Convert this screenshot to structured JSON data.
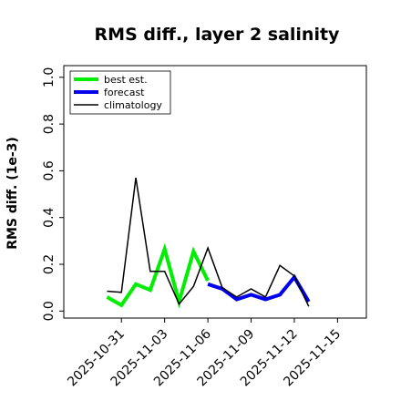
{
  "chart_data": {
    "type": "line",
    "title": "RMS diff., layer 2 salinity",
    "xlabel": "",
    "ylabel": "RMS diff. (1e-3)",
    "ylim": [
      -0.03,
      1.05
    ],
    "yticks": [
      0.0,
      0.2,
      0.4,
      0.6,
      0.8,
      1.0
    ],
    "ytick_labels": [
      "0.0",
      "0.2",
      "0.4",
      "0.6",
      "0.8",
      "1.0"
    ],
    "xlim": [
      "2025-10-27T00:00",
      "2025-11-17T00:00"
    ],
    "xticks": [
      "2025-10-31",
      "2025-11-03",
      "2025-11-06",
      "2025-11-09",
      "2025-11-12",
      "2025-11-15"
    ],
    "xtick_labels": [
      "2025-10-31",
      "2025-11-03",
      "2025-11-06",
      "2025-11-09",
      "2025-11-12",
      "2025-11-15"
    ],
    "highlight_xtick": "2025-11-06",
    "highlight_color": "#2e8b2e",
    "grid": false,
    "legend_position": "top-left",
    "series": [
      {
        "name": "best est.",
        "color": "#00ee00",
        "width": 4,
        "points": [
          [
            "2025-10-30T00:00",
            0.06
          ],
          [
            "2025-10-31T00:00",
            0.025
          ],
          [
            "2025-11-01T00:00",
            0.115
          ],
          [
            "2025-11-02T00:00",
            0.09
          ],
          [
            "2025-11-03T00:00",
            0.265
          ],
          [
            "2025-11-04T00:00",
            0.04
          ],
          [
            "2025-11-05T00:00",
            0.255
          ],
          [
            "2025-11-06T00:00",
            0.13
          ]
        ]
      },
      {
        "name": "forecast",
        "color": "#0000ee",
        "width": 4,
        "points": [
          [
            "2025-11-06T00:00",
            0.115
          ],
          [
            "2025-11-07T00:00",
            0.095
          ],
          [
            "2025-11-08T00:00",
            0.05
          ],
          [
            "2025-11-09T00:00",
            0.07
          ],
          [
            "2025-11-10T00:00",
            0.05
          ],
          [
            "2025-11-11T00:00",
            0.07
          ],
          [
            "2025-11-12T00:00",
            0.145
          ],
          [
            "2025-11-13T00:00",
            0.04
          ]
        ]
      },
      {
        "name": "climatology",
        "color": "#000000",
        "width": 1.5,
        "points": [
          [
            "2025-10-30T00:00",
            0.085
          ],
          [
            "2025-10-31T00:00",
            0.08
          ],
          [
            "2025-11-01T00:00",
            0.57
          ],
          [
            "2025-11-02T00:00",
            0.17
          ],
          [
            "2025-11-03T00:00",
            0.17
          ],
          [
            "2025-11-04T00:00",
            0.03
          ],
          [
            "2025-11-05T00:00",
            0.105
          ],
          [
            "2025-11-06T00:00",
            0.27
          ],
          [
            "2025-11-07T00:00",
            0.1
          ],
          [
            "2025-11-08T00:00",
            0.06
          ],
          [
            "2025-11-09T00:00",
            0.095
          ],
          [
            "2025-11-10T00:00",
            0.06
          ],
          [
            "2025-11-11T00:00",
            0.195
          ],
          [
            "2025-11-12T00:00",
            0.15
          ],
          [
            "2025-11-13T00:00",
            0.02
          ]
        ]
      }
    ]
  }
}
